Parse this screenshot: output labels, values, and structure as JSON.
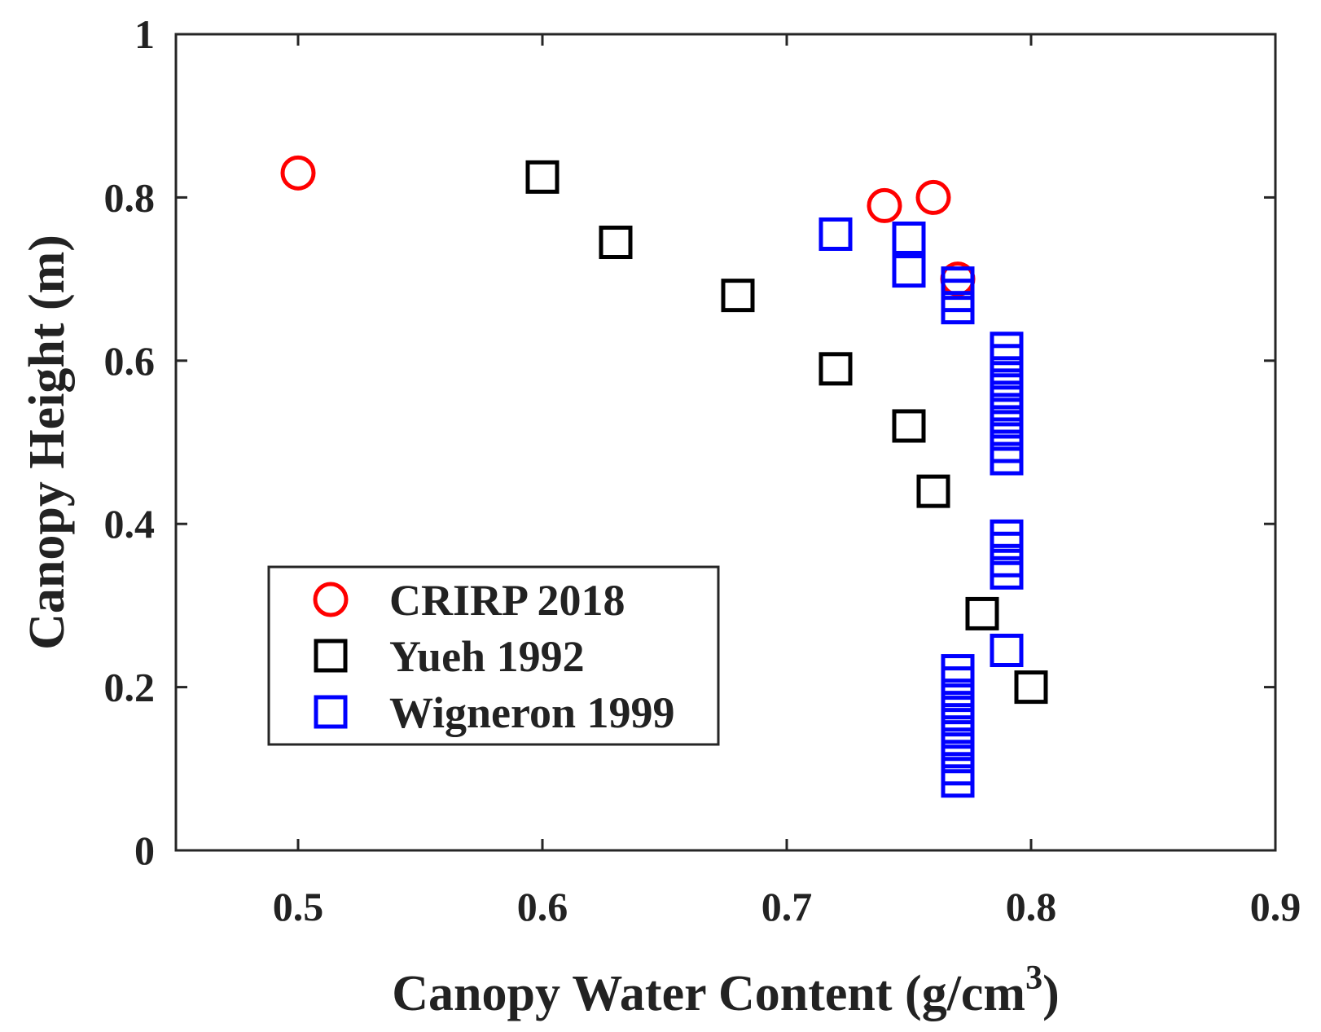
{
  "chart_data": {
    "type": "scatter",
    "title": "",
    "xlabel": "Canopy Water Content (g/cm",
    "xlabel_superscript": "3",
    "xlabel_suffix": ")",
    "ylabel": "Canopy Height (m)",
    "xlim": [
      0.45,
      0.9
    ],
    "ylim": [
      0,
      1
    ],
    "xticks": [
      0.5,
      0.6,
      0.7,
      0.8,
      0.9
    ],
    "xtick_labels": [
      "0.5",
      "0.6",
      "0.7",
      "0.8",
      "0.9"
    ],
    "yticks": [
      0,
      0.2,
      0.4,
      0.6,
      0.8,
      1
    ],
    "ytick_labels": [
      "0",
      "0.2",
      "0.4",
      "0.6",
      "0.8",
      "1"
    ],
    "grid": false,
    "legend_position": "bottom-left",
    "series": [
      {
        "name": "CRIRP 2018",
        "marker": "circle",
        "color": "#ff0000",
        "points": [
          [
            0.5,
            0.83
          ],
          [
            0.74,
            0.79
          ],
          [
            0.76,
            0.8
          ],
          [
            0.77,
            0.7
          ]
        ]
      },
      {
        "name": "Yueh 1992",
        "marker": "square",
        "color": "#000000",
        "points": [
          [
            0.6,
            0.825
          ],
          [
            0.63,
            0.745
          ],
          [
            0.68,
            0.68
          ],
          [
            0.72,
            0.59
          ],
          [
            0.75,
            0.52
          ],
          [
            0.76,
            0.44
          ],
          [
            0.78,
            0.29
          ],
          [
            0.8,
            0.2
          ]
        ]
      },
      {
        "name": "Wigneron 1999",
        "marker": "square",
        "color": "#0000ff",
        "points": [
          [
            0.72,
            0.755
          ],
          [
            0.75,
            0.75
          ],
          [
            0.75,
            0.71
          ],
          [
            0.77,
            0.695
          ],
          [
            0.77,
            0.68
          ],
          [
            0.77,
            0.665
          ],
          [
            0.79,
            0.615
          ],
          [
            0.79,
            0.6
          ],
          [
            0.79,
            0.585
          ],
          [
            0.79,
            0.57
          ],
          [
            0.79,
            0.555
          ],
          [
            0.79,
            0.54
          ],
          [
            0.79,
            0.525
          ],
          [
            0.79,
            0.51
          ],
          [
            0.79,
            0.495
          ],
          [
            0.79,
            0.48
          ],
          [
            0.79,
            0.385
          ],
          [
            0.79,
            0.37
          ],
          [
            0.79,
            0.355
          ],
          [
            0.79,
            0.34
          ],
          [
            0.79,
            0.245
          ],
          [
            0.77,
            0.22
          ],
          [
            0.77,
            0.205
          ],
          [
            0.77,
            0.19
          ],
          [
            0.77,
            0.175
          ],
          [
            0.77,
            0.16
          ],
          [
            0.77,
            0.145
          ],
          [
            0.77,
            0.13
          ],
          [
            0.77,
            0.115
          ],
          [
            0.77,
            0.1
          ],
          [
            0.77,
            0.085
          ]
        ]
      }
    ]
  }
}
